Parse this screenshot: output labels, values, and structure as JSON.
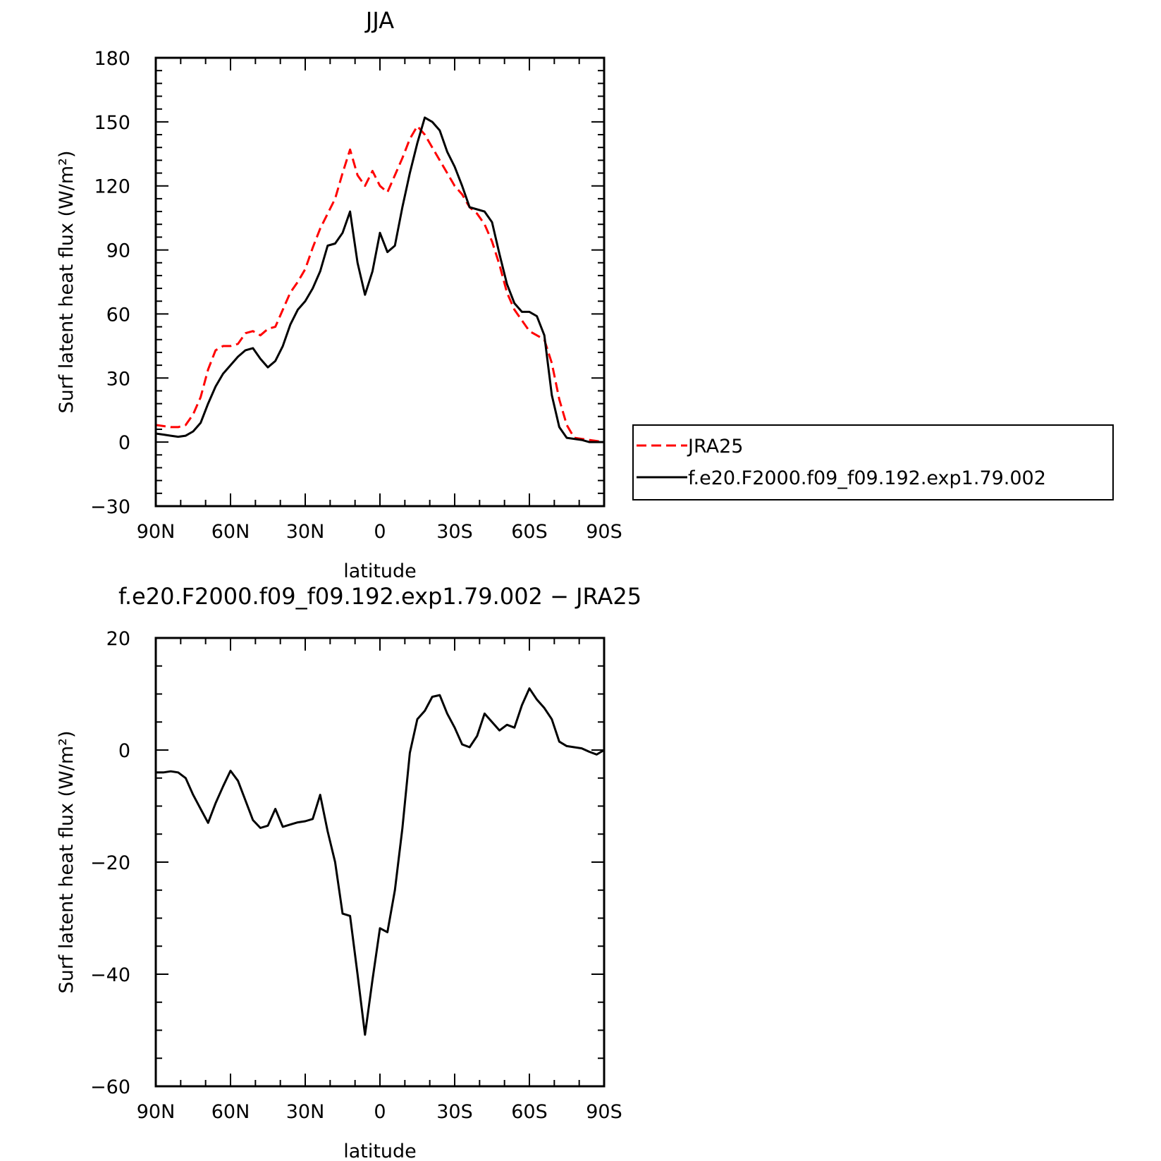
{
  "chart_data": [
    {
      "type": "line",
      "title": "JJA",
      "xlabel": "latitude",
      "ylabel": "Surf latent heat flux (W/m²)",
      "xlim": [
        90,
        -90
      ],
      "ylim": [
        -30,
        180
      ],
      "x_ticks": [
        {
          "value": 90,
          "label": "90N"
        },
        {
          "value": 60,
          "label": "60N"
        },
        {
          "value": 30,
          "label": "30N"
        },
        {
          "value": 0,
          "label": "0"
        },
        {
          "value": -30,
          "label": "30S"
        },
        {
          "value": -60,
          "label": "60S"
        },
        {
          "value": -90,
          "label": "90S"
        }
      ],
      "y_ticks": [
        180,
        150,
        120,
        90,
        60,
        30,
        0,
        -30
      ],
      "y_tick_labels": [
        "180",
        "150",
        "120",
        "90",
        "60",
        "30",
        "0",
        "−30"
      ],
      "grid": false,
      "legend_position": "right-middle",
      "series": [
        {
          "name": "JRA25",
          "color": "#ff0000",
          "dash": "dashed",
          "x": [
            90,
            87,
            84,
            81,
            78,
            75,
            72,
            69,
            66,
            63,
            60,
            57,
            54,
            51,
            48,
            45,
            42,
            39,
            36,
            33,
            30,
            27,
            24,
            21,
            18,
            15,
            12,
            9,
            6,
            3,
            0,
            -3,
            -6,
            -9,
            -12,
            -15,
            -18,
            -21,
            -24,
            -27,
            -30,
            -33,
            -36,
            -39,
            -42,
            -45,
            -48,
            -51,
            -54,
            -57,
            -60,
            -63,
            -66,
            -69,
            -72,
            -75,
            -78,
            -81,
            -84,
            -87,
            -90
          ],
          "y": [
            8,
            7.5,
            7,
            7,
            8,
            13,
            21,
            34,
            43,
            45,
            45,
            46,
            51,
            52,
            50,
            53,
            54,
            62,
            70,
            75,
            81,
            91,
            100,
            107,
            114,
            126,
            137,
            125,
            120,
            127,
            120,
            117,
            125,
            133,
            142,
            148,
            144,
            138,
            132,
            126,
            120,
            116,
            110,
            107,
            102,
            94,
            83,
            70,
            62,
            57,
            52,
            50,
            48,
            37,
            20,
            8,
            2,
            1.5,
            1,
            0.5,
            0
          ]
        },
        {
          "name": "f.e20.F2000.f09_f09.192.exp1.79.002",
          "color": "#000000",
          "dash": "solid",
          "x": [
            90,
            87,
            84,
            81,
            78,
            75,
            72,
            69,
            66,
            63,
            60,
            57,
            54,
            51,
            48,
            45,
            42,
            39,
            36,
            33,
            30,
            27,
            24,
            21,
            18,
            15,
            12,
            9,
            6,
            3,
            0,
            -3,
            -6,
            -9,
            -12,
            -15,
            -18,
            -21,
            -24,
            -27,
            -30,
            -33,
            -36,
            -39,
            -42,
            -45,
            -48,
            -51,
            -54,
            -57,
            -60,
            -63,
            -66,
            -69,
            -72,
            -75,
            -78,
            -81,
            -84,
            -87,
            -90
          ],
          "y": [
            4,
            3.5,
            3,
            2.5,
            3,
            5,
            9,
            18,
            26,
            32,
            36,
            40,
            43,
            44,
            39,
            35,
            38,
            45,
            55,
            62,
            66,
            72,
            80,
            92,
            93,
            98,
            108,
            84,
            69,
            80,
            98,
            89,
            92,
            110,
            126,
            140,
            152,
            150,
            146,
            136,
            129,
            120,
            110,
            109,
            108,
            103,
            88,
            74,
            65,
            61,
            61,
            59,
            50,
            22,
            7,
            2,
            1.5,
            1,
            0,
            0,
            0
          ]
        }
      ]
    },
    {
      "type": "line",
      "title": "f.e20.F2000.f09_f09.192.exp1.79.002 − JRA25",
      "xlabel": "latitude",
      "ylabel": "Surf latent heat flux (W/m²)",
      "xlim": [
        90,
        -90
      ],
      "ylim": [
        -60,
        20
      ],
      "x_ticks": [
        {
          "value": 90,
          "label": "90N"
        },
        {
          "value": 60,
          "label": "60N"
        },
        {
          "value": 30,
          "label": "30N"
        },
        {
          "value": 0,
          "label": "0"
        },
        {
          "value": -30,
          "label": "30S"
        },
        {
          "value": -60,
          "label": "60S"
        },
        {
          "value": -90,
          "label": "90S"
        }
      ],
      "y_ticks": [
        20,
        0,
        -20,
        -40,
        -60
      ],
      "y_tick_labels": [
        "20",
        "0",
        "−20",
        "−40",
        "−60"
      ],
      "grid": false,
      "series": [
        {
          "color": "#000000",
          "dash": "solid",
          "x": [
            90,
            87,
            84,
            81,
            78,
            75,
            72,
            69,
            66,
            63,
            60,
            57,
            54,
            51,
            48,
            45,
            42,
            39,
            36,
            33,
            30,
            27,
            24,
            21,
            18,
            15,
            12,
            9,
            6,
            3,
            0,
            -3,
            -6,
            -9,
            -12,
            -15,
            -18,
            -21,
            -24,
            -27,
            -30,
            -33,
            -36,
            -39,
            -42,
            -45,
            -48,
            -51,
            -54,
            -57,
            -60,
            -63,
            -66,
            -69,
            -72,
            -75,
            -78,
            -81,
            -84,
            -87,
            -90
          ],
          "y": [
            -4,
            -4,
            -3.8,
            -4,
            -5,
            -8,
            -10.5,
            -13,
            -9.5,
            -6.5,
            -3.7,
            -5.5,
            -9,
            -12.5,
            -13.9,
            -13.5,
            -10.5,
            -13.7,
            -13.3,
            -12.9,
            -12.7,
            -12.3,
            -8,
            -14.5,
            -20,
            -29.2,
            -29.6,
            -40,
            -50.8,
            -41,
            -31.8,
            -32.5,
            -25,
            -14,
            -0.5,
            5.5,
            7,
            9.5,
            9.8,
            6.5,
            4,
            1,
            0.5,
            2.5,
            6.5,
            5,
            3.5,
            4.5,
            4,
            8,
            11,
            9,
            7.5,
            5.5,
            1.5,
            0.7,
            0.5,
            0.3,
            -0.3,
            -0.8,
            0
          ]
        }
      ]
    }
  ],
  "legend": {
    "entries": [
      {
        "label": "JRA25",
        "color": "#ff0000",
        "dash": "dashed"
      },
      {
        "label": "f.e20.F2000.f09_f09.192.exp1.79.002",
        "color": "#000000",
        "dash": "solid"
      }
    ]
  }
}
